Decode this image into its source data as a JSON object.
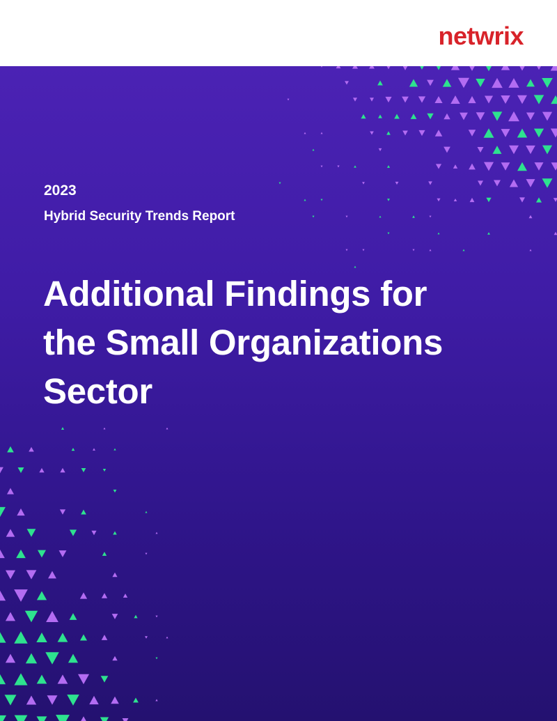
{
  "brand": {
    "logo_text": "netwrix",
    "colors": {
      "logo": "#d8232a",
      "accent_green": "#2ee28f",
      "accent_purple": "#b36cf2",
      "background_top": "#4b22b4",
      "background_bottom": "#241170"
    }
  },
  "cover": {
    "year": "2023",
    "report_name": "Hybrid Security Trends Report",
    "title_lines": [
      "Additional Findings for",
      "the Small Organizations",
      "Sector"
    ]
  }
}
